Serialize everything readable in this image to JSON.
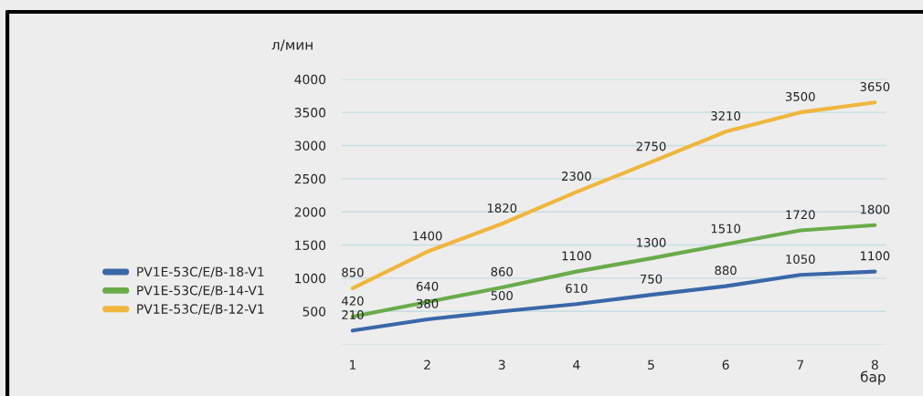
{
  "chart_data": {
    "type": "line",
    "ylabel": "л/мин",
    "xlabel": "бар",
    "x": [
      1,
      2,
      3,
      4,
      5,
      6,
      7,
      8
    ],
    "series": [
      {
        "name": "PV1E-53C/E/B-18-V1",
        "color": "#3a67a8",
        "values": [
          210,
          380,
          500,
          610,
          750,
          880,
          1050,
          1100
        ]
      },
      {
        "name": "PV1E-53C/E/B-14-V1",
        "color": "#6aab4a",
        "values": [
          420,
          640,
          860,
          1100,
          1300,
          1510,
          1720,
          1800
        ]
      },
      {
        "name": "PV1E-53C/E/B-12-V1",
        "color": "#f0b63c",
        "values": [
          850,
          1400,
          1820,
          2300,
          2750,
          3210,
          3500,
          3650
        ]
      }
    ],
    "xlim": [
      0.85,
      8.15
    ],
    "xticks": [
      1,
      2,
      3,
      4,
      5,
      6,
      7,
      8
    ],
    "ylim": [
      0,
      4000
    ],
    "yticks": [
      {
        "value": 0,
        "label": null
      },
      500,
      1000,
      1500,
      2000,
      2500,
      3000,
      3500,
      4000
    ],
    "grid": "y",
    "legend": "left",
    "data_labels": true,
    "marker": "none",
    "line_style": "solid"
  }
}
